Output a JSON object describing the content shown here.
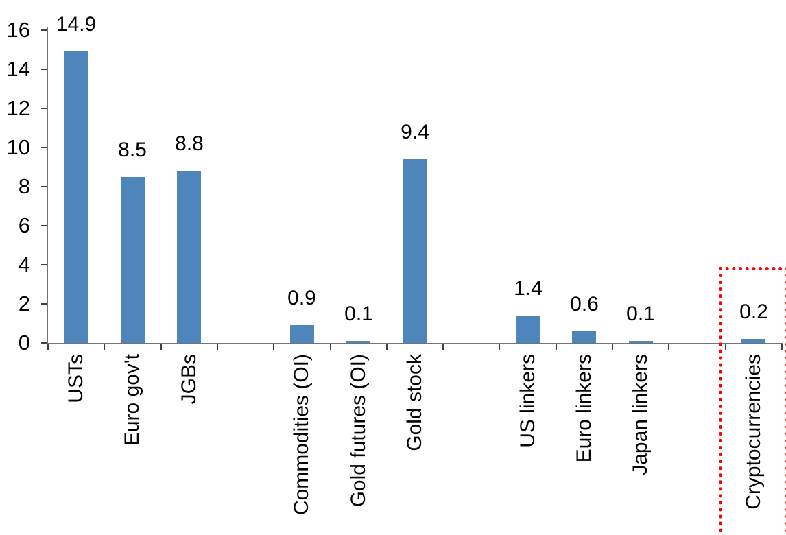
{
  "chart_data": {
    "type": "bar",
    "title": "",
    "xlabel": "",
    "ylabel": "",
    "categories": [
      "USTs",
      "Euro gov't",
      "JGBs",
      "",
      "Commodities (OI)",
      "Gold futures (OI)",
      "Gold stock",
      "",
      "US linkers",
      "Euro linkers",
      "Japan linkers",
      "",
      "Cryptocurrencies"
    ],
    "values": [
      14.9,
      8.5,
      8.8,
      null,
      0.9,
      0.1,
      9.4,
      null,
      1.4,
      0.6,
      0.1,
      null,
      0.2
    ],
    "data_labels": [
      "14.9",
      "8.5",
      "8.8",
      "",
      "0.9",
      "0.1",
      "9.4",
      "",
      "1.4",
      "0.6",
      "0.1",
      "",
      "0.2"
    ],
    "ylim": [
      0,
      16
    ],
    "yticks": [
      0,
      2,
      4,
      6,
      8,
      10,
      12,
      14,
      16
    ],
    "grid": false,
    "legend": "none",
    "bar_color": "#4E86BC",
    "axis_color": "#737373",
    "tick_color": "#404040",
    "text_color": "#000000",
    "highlight": {
      "category": "Cryptocurrencies",
      "index": 12,
      "style": "dotted-rectangle",
      "color": "#FF0000"
    }
  }
}
